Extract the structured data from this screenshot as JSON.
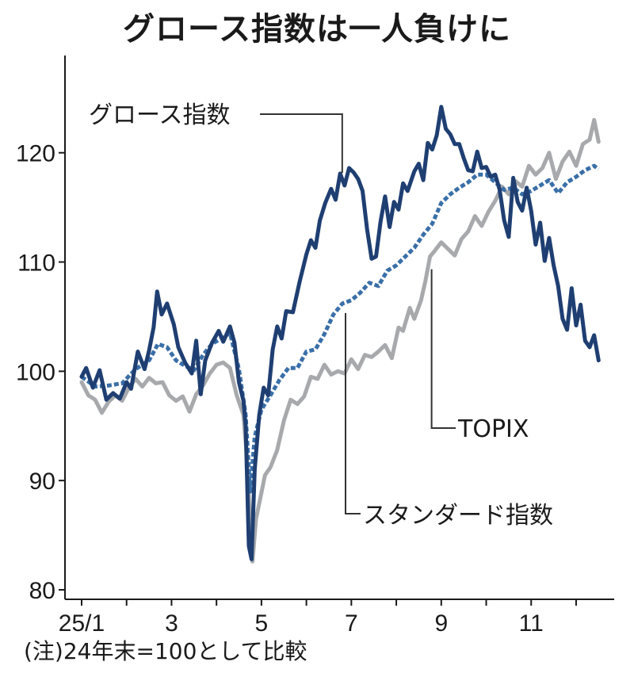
{
  "chart_data": {
    "type": "line",
    "title": "グロース指数は一人負けに",
    "note": "(注)24年末=100として比較",
    "ylim": [
      80,
      126
    ],
    "yticks": [
      80,
      90,
      100,
      110,
      120
    ],
    "xlim": [
      0,
      11.6
    ],
    "xticks": [
      {
        "pos": 0,
        "label": "25/1"
      },
      {
        "pos": 2,
        "label": "3"
      },
      {
        "pos": 4,
        "label": "5"
      },
      {
        "pos": 6,
        "label": "7"
      },
      {
        "pos": 8,
        "label": "9"
      },
      {
        "pos": 10,
        "label": "11"
      }
    ],
    "grid": false,
    "legend": "inline",
    "series": [
      {
        "name": "グロース指数",
        "color": "#1f3f72",
        "style": "solid",
        "points": [
          [
            0,
            99.5
          ],
          [
            0.1,
            100.3
          ],
          [
            0.25,
            98.5
          ],
          [
            0.4,
            100.1
          ],
          [
            0.55,
            97.4
          ],
          [
            0.7,
            98.0
          ],
          [
            0.85,
            97.5
          ],
          [
            1.0,
            99.0
          ],
          [
            1.1,
            98.4
          ],
          [
            1.25,
            101.8
          ],
          [
            1.4,
            100.2
          ],
          [
            1.5,
            101.9
          ],
          [
            1.6,
            104.0
          ],
          [
            1.68,
            107.3
          ],
          [
            1.78,
            105.2
          ],
          [
            1.9,
            106.2
          ],
          [
            2.05,
            104.3
          ],
          [
            2.15,
            102.2
          ],
          [
            2.3,
            100.8
          ],
          [
            2.45,
            99.8
          ],
          [
            2.55,
            102.8
          ],
          [
            2.65,
            97.9
          ],
          [
            2.75,
            101.0
          ],
          [
            2.9,
            102.6
          ],
          [
            3.05,
            103.7
          ],
          [
            3.15,
            102.7
          ],
          [
            3.3,
            104.1
          ],
          [
            3.4,
            102.6
          ],
          [
            3.5,
            99.0
          ],
          [
            3.6,
            97.3
          ],
          [
            3.65,
            95.0
          ],
          [
            3.72,
            84.0
          ],
          [
            3.78,
            82.8
          ],
          [
            3.85,
            91.0
          ],
          [
            3.95,
            96.0
          ],
          [
            4.05,
            98.5
          ],
          [
            4.15,
            97.8
          ],
          [
            4.25,
            102.0
          ],
          [
            4.35,
            104.1
          ],
          [
            4.45,
            103.0
          ],
          [
            4.55,
            105.5
          ],
          [
            4.7,
            105.4
          ],
          [
            4.85,
            108.2
          ],
          [
            5.0,
            110.7
          ],
          [
            5.1,
            112.0
          ],
          [
            5.2,
            111.3
          ],
          [
            5.3,
            113.8
          ],
          [
            5.42,
            115.4
          ],
          [
            5.55,
            116.7
          ],
          [
            5.65,
            115.7
          ],
          [
            5.75,
            118.1
          ],
          [
            5.85,
            117.0
          ],
          [
            5.95,
            118.6
          ],
          [
            6.05,
            118.2
          ],
          [
            6.15,
            117.6
          ],
          [
            6.25,
            116.5
          ],
          [
            6.35,
            113.0
          ],
          [
            6.45,
            110.3
          ],
          [
            6.55,
            110.5
          ],
          [
            6.65,
            113.7
          ],
          [
            6.75,
            116.0
          ],
          [
            6.85,
            113.2
          ],
          [
            6.95,
            115.5
          ],
          [
            7.05,
            114.8
          ],
          [
            7.15,
            117.2
          ],
          [
            7.25,
            116.5
          ],
          [
            7.4,
            118.3
          ],
          [
            7.5,
            119.0
          ],
          [
            7.6,
            117.5
          ],
          [
            7.7,
            120.9
          ],
          [
            7.8,
            120.3
          ],
          [
            7.9,
            121.6
          ],
          [
            8.0,
            124.2
          ],
          [
            8.1,
            122.2
          ],
          [
            8.2,
            121.7
          ],
          [
            8.3,
            120.8
          ],
          [
            8.4,
            120.8
          ],
          [
            8.5,
            119.5
          ],
          [
            8.6,
            118.4
          ],
          [
            8.7,
            118.3
          ],
          [
            8.8,
            120.1
          ],
          [
            8.9,
            118.6
          ],
          [
            9.0,
            118.7
          ],
          [
            9.1,
            117.8
          ],
          [
            9.2,
            118.0
          ],
          [
            9.3,
            116.6
          ],
          [
            9.4,
            113.8
          ],
          [
            9.5,
            112.3
          ],
          [
            9.6,
            117.7
          ],
          [
            9.7,
            115.5
          ],
          [
            9.8,
            114.7
          ],
          [
            9.9,
            116.8
          ],
          [
            10.0,
            114.7
          ],
          [
            10.1,
            111.6
          ],
          [
            10.2,
            113.6
          ],
          [
            10.3,
            110.1
          ],
          [
            10.4,
            112.2
          ],
          [
            10.5,
            109.7
          ],
          [
            10.6,
            107.8
          ],
          [
            10.7,
            104.8
          ],
          [
            10.8,
            103.8
          ],
          [
            10.9,
            107.6
          ],
          [
            11.0,
            104.2
          ],
          [
            11.1,
            106.1
          ],
          [
            11.2,
            102.8
          ],
          [
            11.3,
            102.2
          ],
          [
            11.4,
            103.3
          ],
          [
            11.5,
            101.0
          ]
        ]
      },
      {
        "name": "スタンダード指数",
        "color": "#3a6fa8",
        "style": "dotted",
        "points": [
          [
            0,
            99.5
          ],
          [
            0.3,
            98.6
          ],
          [
            0.6,
            98.7
          ],
          [
            0.9,
            98.9
          ],
          [
            1.2,
            100.2
          ],
          [
            1.5,
            101.0
          ],
          [
            1.7,
            102.5
          ],
          [
            1.9,
            102.2
          ],
          [
            2.1,
            101.0
          ],
          [
            2.3,
            100.5
          ],
          [
            2.5,
            100.1
          ],
          [
            2.7,
            101.5
          ],
          [
            2.9,
            102.5
          ],
          [
            3.1,
            103.0
          ],
          [
            3.3,
            103.5
          ],
          [
            3.5,
            100.2
          ],
          [
            3.65,
            96.0
          ],
          [
            3.75,
            89.0
          ],
          [
            3.85,
            94.0
          ],
          [
            4.0,
            96.5
          ],
          [
            4.2,
            97.8
          ],
          [
            4.4,
            99.2
          ],
          [
            4.6,
            100.3
          ],
          [
            4.8,
            100.3
          ],
          [
            5.0,
            101.8
          ],
          [
            5.2,
            102.0
          ],
          [
            5.4,
            103.4
          ],
          [
            5.6,
            105.2
          ],
          [
            5.8,
            106.2
          ],
          [
            6.0,
            106.5
          ],
          [
            6.2,
            107.2
          ],
          [
            6.4,
            108.1
          ],
          [
            6.6,
            107.8
          ],
          [
            6.8,
            109.2
          ],
          [
            7.0,
            109.7
          ],
          [
            7.2,
            110.5
          ],
          [
            7.4,
            111.3
          ],
          [
            7.6,
            112.5
          ],
          [
            7.8,
            113.5
          ],
          [
            8.0,
            115.4
          ],
          [
            8.2,
            116.2
          ],
          [
            8.4,
            116.8
          ],
          [
            8.6,
            117.3
          ],
          [
            8.8,
            118.0
          ],
          [
            9.0,
            118.0
          ],
          [
            9.2,
            117.3
          ],
          [
            9.4,
            116.6
          ],
          [
            9.6,
            116.8
          ],
          [
            9.8,
            116.2
          ],
          [
            10.0,
            116.5
          ],
          [
            10.2,
            117.0
          ],
          [
            10.4,
            117.5
          ],
          [
            10.6,
            116.3
          ],
          [
            10.8,
            117.3
          ],
          [
            11.0,
            117.8
          ],
          [
            11.2,
            118.4
          ],
          [
            11.4,
            118.8
          ],
          [
            11.5,
            118.5
          ]
        ]
      },
      {
        "name": "TOPIX",
        "color": "#a7a9ac",
        "style": "solid",
        "points": [
          [
            0,
            99.0
          ],
          [
            0.15,
            97.8
          ],
          [
            0.3,
            97.4
          ],
          [
            0.45,
            96.2
          ],
          [
            0.6,
            97.2
          ],
          [
            0.75,
            97.8
          ],
          [
            0.9,
            97.3
          ],
          [
            1.05,
            98.5
          ],
          [
            1.2,
            99.3
          ],
          [
            1.35,
            98.6
          ],
          [
            1.5,
            99.4
          ],
          [
            1.65,
            98.9
          ],
          [
            1.8,
            99.0
          ],
          [
            1.95,
            97.8
          ],
          [
            2.1,
            97.3
          ],
          [
            2.25,
            97.7
          ],
          [
            2.4,
            96.3
          ],
          [
            2.55,
            97.9
          ],
          [
            2.7,
            98.7
          ],
          [
            2.85,
            99.8
          ],
          [
            3.0,
            100.6
          ],
          [
            3.15,
            100.8
          ],
          [
            3.3,
            100.3
          ],
          [
            3.45,
            97.8
          ],
          [
            3.6,
            96.0
          ],
          [
            3.68,
            92.0
          ],
          [
            3.75,
            86.0
          ],
          [
            3.8,
            82.6
          ],
          [
            3.88,
            86.5
          ],
          [
            3.98,
            88.5
          ],
          [
            4.08,
            90.5
          ],
          [
            4.2,
            91.2
          ],
          [
            4.35,
            92.8
          ],
          [
            4.5,
            95.5
          ],
          [
            4.65,
            97.4
          ],
          [
            4.8,
            97.0
          ],
          [
            4.95,
            97.7
          ],
          [
            5.1,
            99.5
          ],
          [
            5.25,
            99.3
          ],
          [
            5.4,
            100.6
          ],
          [
            5.55,
            99.7
          ],
          [
            5.7,
            100.0
          ],
          [
            5.85,
            99.8
          ],
          [
            6.0,
            101.1
          ],
          [
            6.15,
            100.2
          ],
          [
            6.3,
            101.5
          ],
          [
            6.45,
            101.3
          ],
          [
            6.6,
            101.8
          ],
          [
            6.75,
            102.4
          ],
          [
            6.9,
            101.2
          ],
          [
            7.05,
            104.0
          ],
          [
            7.15,
            103.7
          ],
          [
            7.3,
            105.8
          ],
          [
            7.4,
            104.8
          ],
          [
            7.55,
            106.5
          ],
          [
            7.65,
            108.3
          ],
          [
            7.75,
            110.5
          ],
          [
            7.85,
            111.0
          ],
          [
            8.0,
            111.8
          ],
          [
            8.15,
            111.2
          ],
          [
            8.3,
            110.6
          ],
          [
            8.45,
            112.1
          ],
          [
            8.6,
            112.8
          ],
          [
            8.75,
            114.2
          ],
          [
            8.9,
            113.3
          ],
          [
            9.05,
            114.6
          ],
          [
            9.2,
            115.6
          ],
          [
            9.35,
            116.9
          ],
          [
            9.5,
            116.2
          ],
          [
            9.65,
            117.4
          ],
          [
            9.8,
            116.9
          ],
          [
            9.95,
            118.8
          ],
          [
            10.1,
            118.0
          ],
          [
            10.25,
            118.6
          ],
          [
            10.4,
            120.0
          ],
          [
            10.55,
            117.6
          ],
          [
            10.7,
            119.2
          ],
          [
            10.85,
            120.1
          ],
          [
            11.0,
            118.8
          ],
          [
            11.15,
            120.8
          ],
          [
            11.3,
            121.2
          ],
          [
            11.4,
            123.0
          ],
          [
            11.5,
            121.0
          ]
        ]
      }
    ],
    "labels": [
      {
        "text": "グロース指数",
        "series": "グロース指数"
      },
      {
        "text": "スタンダード指数",
        "series": "スタンダード指数"
      },
      {
        "text": "TOPIX",
        "series": "TOPIX"
      }
    ]
  }
}
